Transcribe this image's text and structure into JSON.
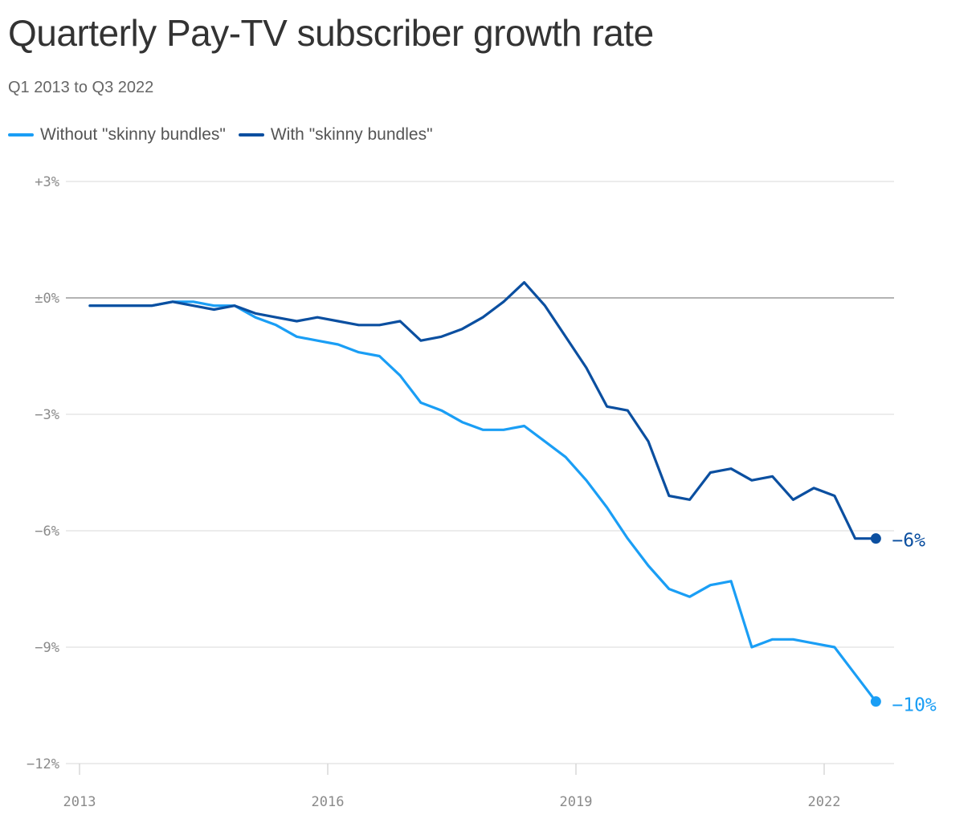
{
  "chart_data": {
    "type": "line",
    "title": "Quarterly Pay-TV subscriber growth rate",
    "subtitle": "Q1 2013 to Q3 2022",
    "x_start_year": 2013,
    "x_ticks": [
      2013,
      2016,
      2019,
      2022
    ],
    "x_tick_labels": [
      "2013",
      "2016",
      "2019",
      "2022"
    ],
    "xlim": [
      2013.0,
      2022.85
    ],
    "x": [
      "Q1 2013",
      "Q2 2013",
      "Q3 2013",
      "Q4 2013",
      "Q1 2014",
      "Q2 2014",
      "Q3 2014",
      "Q4 2014",
      "Q1 2015",
      "Q2 2015",
      "Q3 2015",
      "Q4 2015",
      "Q1 2016",
      "Q2 2016",
      "Q3 2016",
      "Q4 2016",
      "Q1 2017",
      "Q2 2017",
      "Q3 2017",
      "Q4 2017",
      "Q1 2018",
      "Q2 2018",
      "Q3 2018",
      "Q4 2018",
      "Q1 2019",
      "Q2 2019",
      "Q3 2019",
      "Q4 2019",
      "Q1 2020",
      "Q2 2020",
      "Q3 2020",
      "Q4 2020",
      "Q1 2021",
      "Q2 2021",
      "Q3 2021",
      "Q4 2021",
      "Q1 2022",
      "Q2 2022",
      "Q3 2022"
    ],
    "y_ticks": [
      3,
      0,
      -3,
      -6,
      -9,
      -12
    ],
    "y_tick_labels": [
      "+3%",
      "±0%",
      "−3%",
      "−6%",
      "−9%",
      "−12%"
    ],
    "ylim": [
      -12,
      3
    ],
    "zero_line": true,
    "grid": "horizontal",
    "legend_position": "top-left",
    "series": [
      {
        "name": "Without \"skinny bundles\"",
        "color": "#1a9ef5",
        "end_label": "−10%",
        "values": [
          -0.2,
          -0.2,
          -0.2,
          -0.2,
          -0.1,
          -0.1,
          -0.2,
          -0.2,
          -0.5,
          -0.7,
          -1.0,
          -1.1,
          -1.2,
          -1.4,
          -1.5,
          -2.0,
          -2.7,
          -2.9,
          -3.2,
          -3.4,
          -3.4,
          -3.3,
          -3.7,
          -4.1,
          -4.7,
          -5.4,
          -6.2,
          -6.9,
          -7.5,
          -7.7,
          -7.4,
          -7.3,
          -9.0,
          -8.8,
          -8.8,
          -8.9,
          -9.0,
          -9.7,
          -10.4
        ]
      },
      {
        "name": "With \"skinny bundles\"",
        "color": "#0b4fa0",
        "end_label": "−6%",
        "values": [
          -0.2,
          -0.2,
          -0.2,
          -0.2,
          -0.1,
          -0.2,
          -0.3,
          -0.2,
          -0.4,
          -0.5,
          -0.6,
          -0.5,
          -0.6,
          -0.7,
          -0.7,
          -0.6,
          -1.1,
          -1.0,
          -0.8,
          -0.5,
          -0.1,
          0.4,
          -0.2,
          -1.0,
          -1.8,
          -2.8,
          -2.9,
          -3.7,
          -5.1,
          -5.2,
          -4.5,
          -4.4,
          -4.7,
          -4.6,
          -5.2,
          -4.9,
          -5.1,
          -6.2,
          -6.2
        ]
      }
    ]
  }
}
